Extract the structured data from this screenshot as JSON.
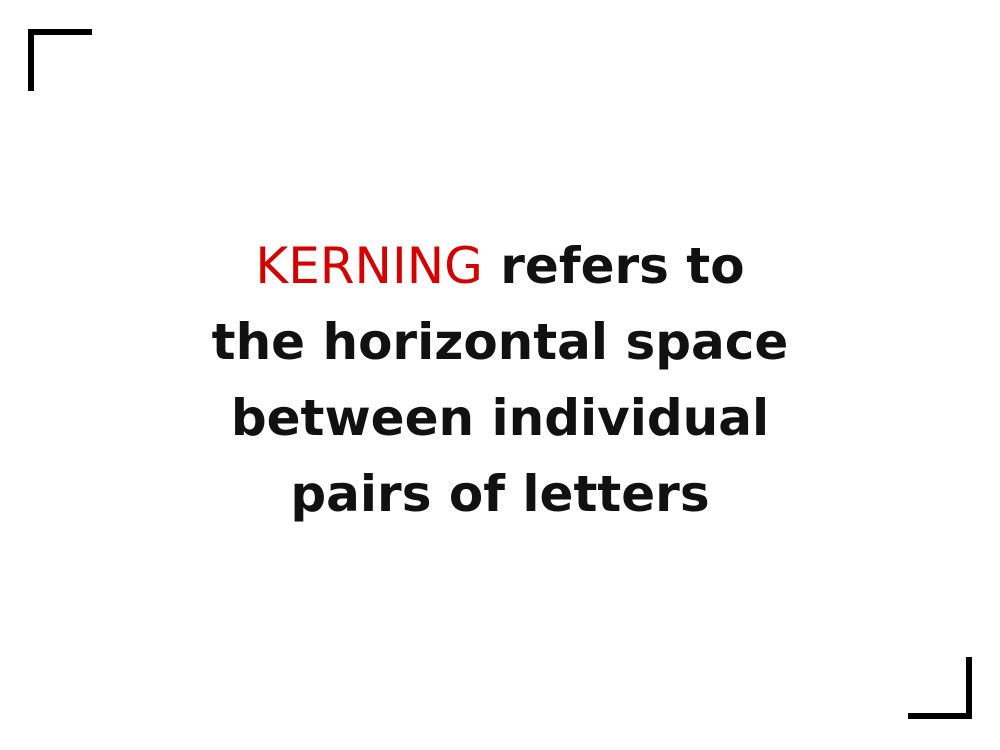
{
  "colors": {
    "accent": "#d40000",
    "text": "#111111",
    "frame": "#000000"
  },
  "statement": {
    "highlight_word": "KERNING",
    "line1_rest": " refers to",
    "line2": "the horizontal space",
    "line3": "between individual",
    "line4": "pairs of letters"
  }
}
